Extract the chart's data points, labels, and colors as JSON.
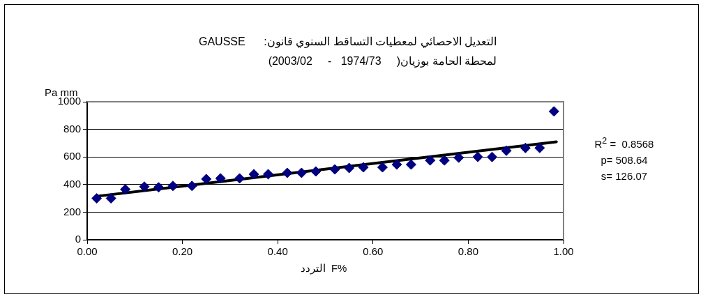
{
  "chart_data": {
    "type": "scatter",
    "title": "التعديل الاحصائي لمعطيات التساقط السنوي قانون:      GAUSSE",
    "subtitle": "لمحطة الحامة بوزيان(     1974/73   -     2003/02)",
    "xlabel": "التردد  F%",
    "ylabel": "Pa mm",
    "annotations": [
      "R$^{2}$ =  0.8568",
      "p= 508.64",
      "s= 126.07"
    ],
    "xlim": [
      0,
      1
    ],
    "xticks": [
      {
        "value": 0,
        "label": "0.00"
      },
      {
        "value": 0.2,
        "label": "0.20"
      },
      {
        "value": 0.4,
        "label": "0.40"
      },
      {
        "value": 0.6,
        "label": "0.60"
      },
      {
        "value": 0.8,
        "label": "0.80"
      },
      {
        "value": 1,
        "label": "1.00"
      }
    ],
    "ylim": [
      0,
      1000
    ],
    "yticks": [
      0,
      200,
      400,
      600,
      800,
      1000
    ],
    "grid": "y",
    "legend": false,
    "marker": "diamond",
    "series": [
      {
        "type": "scatter",
        "color": "#000080",
        "x": [
          0.02,
          0.05,
          0.08,
          0.12,
          0.15,
          0.18,
          0.22,
          0.25,
          0.28,
          0.32,
          0.35,
          0.38,
          0.42,
          0.45,
          0.48,
          0.52,
          0.55,
          0.58,
          0.62,
          0.65,
          0.68,
          0.72,
          0.75,
          0.78,
          0.82,
          0.85,
          0.88,
          0.92,
          0.95,
          0.98
        ],
        "values": [
          300,
          300,
          365,
          385,
          380,
          390,
          390,
          440,
          445,
          445,
          475,
          475,
          485,
          485,
          495,
          510,
          520,
          525,
          525,
          545,
          545,
          575,
          575,
          595,
          600,
          600,
          645,
          665,
          665,
          930
        ]
      },
      {
        "type": "line",
        "color": "#000000",
        "marker": "none",
        "x": [
          0.02,
          0.985
        ],
        "values": [
          315,
          710
        ]
      }
    ]
  }
}
